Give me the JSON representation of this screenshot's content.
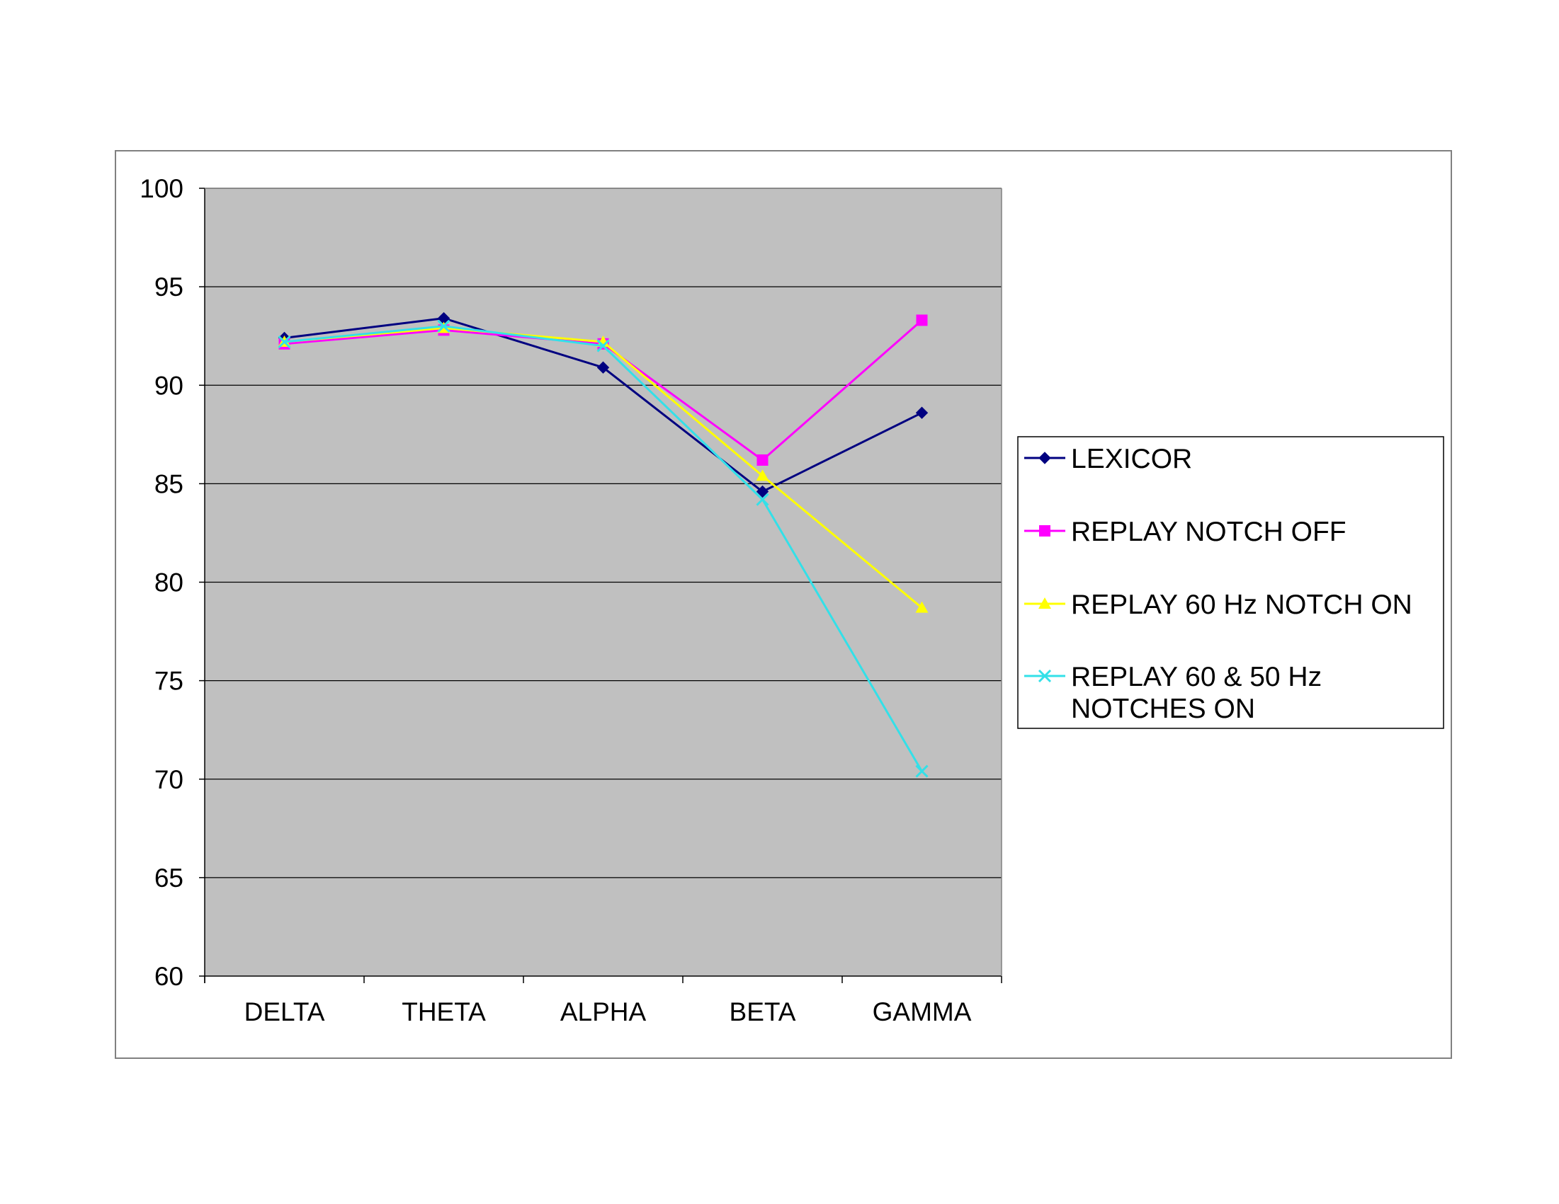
{
  "chart_data": {
    "type": "line",
    "title": "",
    "xlabel": "",
    "ylabel": "",
    "categories": [
      "DELTA",
      "THETA",
      "ALPHA",
      "BETA",
      "GAMMA"
    ],
    "ylim": [
      60,
      100
    ],
    "yticks": [
      60,
      65,
      70,
      75,
      80,
      85,
      90,
      95,
      100
    ],
    "grid": "horizontal",
    "plot_background": "#c0c0c0",
    "legend_position": "right",
    "series": [
      {
        "name": "LEXICOR",
        "values": [
          92.4,
          93.4,
          90.9,
          84.6,
          88.6
        ],
        "color": "#000080",
        "marker": "diamond"
      },
      {
        "name": "REPLAY NOTCH OFF",
        "values": [
          92.1,
          92.8,
          92.1,
          86.2,
          93.3
        ],
        "color": "#ff00ff",
        "marker": "square"
      },
      {
        "name": "REPLAY 60 Hz NOTCH ON",
        "values": [
          92.2,
          92.9,
          92.2,
          85.4,
          78.7
        ],
        "color": "#ffff00",
        "marker": "triangle"
      },
      {
        "name": "REPLAY 60 & 50 Hz NOTCHES ON",
        "values": [
          92.2,
          93.0,
          92.0,
          84.2,
          70.4
        ],
        "color": "#33e0e8",
        "marker": "x"
      }
    ]
  }
}
